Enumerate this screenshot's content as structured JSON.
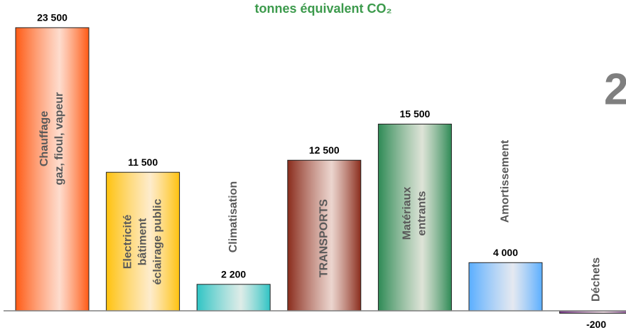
{
  "chart_data": {
    "type": "bar",
    "title": "tonnes équivalent CO₂",
    "categories": [
      [
        "Chauffage",
        "gaz, fioul, vapeur"
      ],
      [
        "Electricité",
        "bâtiment",
        "éclairage public"
      ],
      [
        "Climatisation"
      ],
      [
        "TRANSPORTS"
      ],
      [
        "Matériaux",
        "entrants"
      ],
      [
        "Amortissement"
      ],
      [
        "Déchets"
      ]
    ],
    "values": [
      23500,
      11500,
      2200,
      12500,
      15500,
      4000,
      -200
    ],
    "value_labels": [
      "23 500",
      "11 500",
      "2 200",
      "12 500",
      "15 500",
      "4 000",
      "-200"
    ],
    "colors": [
      "#ff5a14",
      "#ffc20e",
      "#2fc4c4",
      "#8a2c1c",
      "#2e8a55",
      "#5aaeff",
      "#7a3a8a"
    ],
    "ylim": [
      -1000,
      25000
    ]
  },
  "slide_number": "2"
}
